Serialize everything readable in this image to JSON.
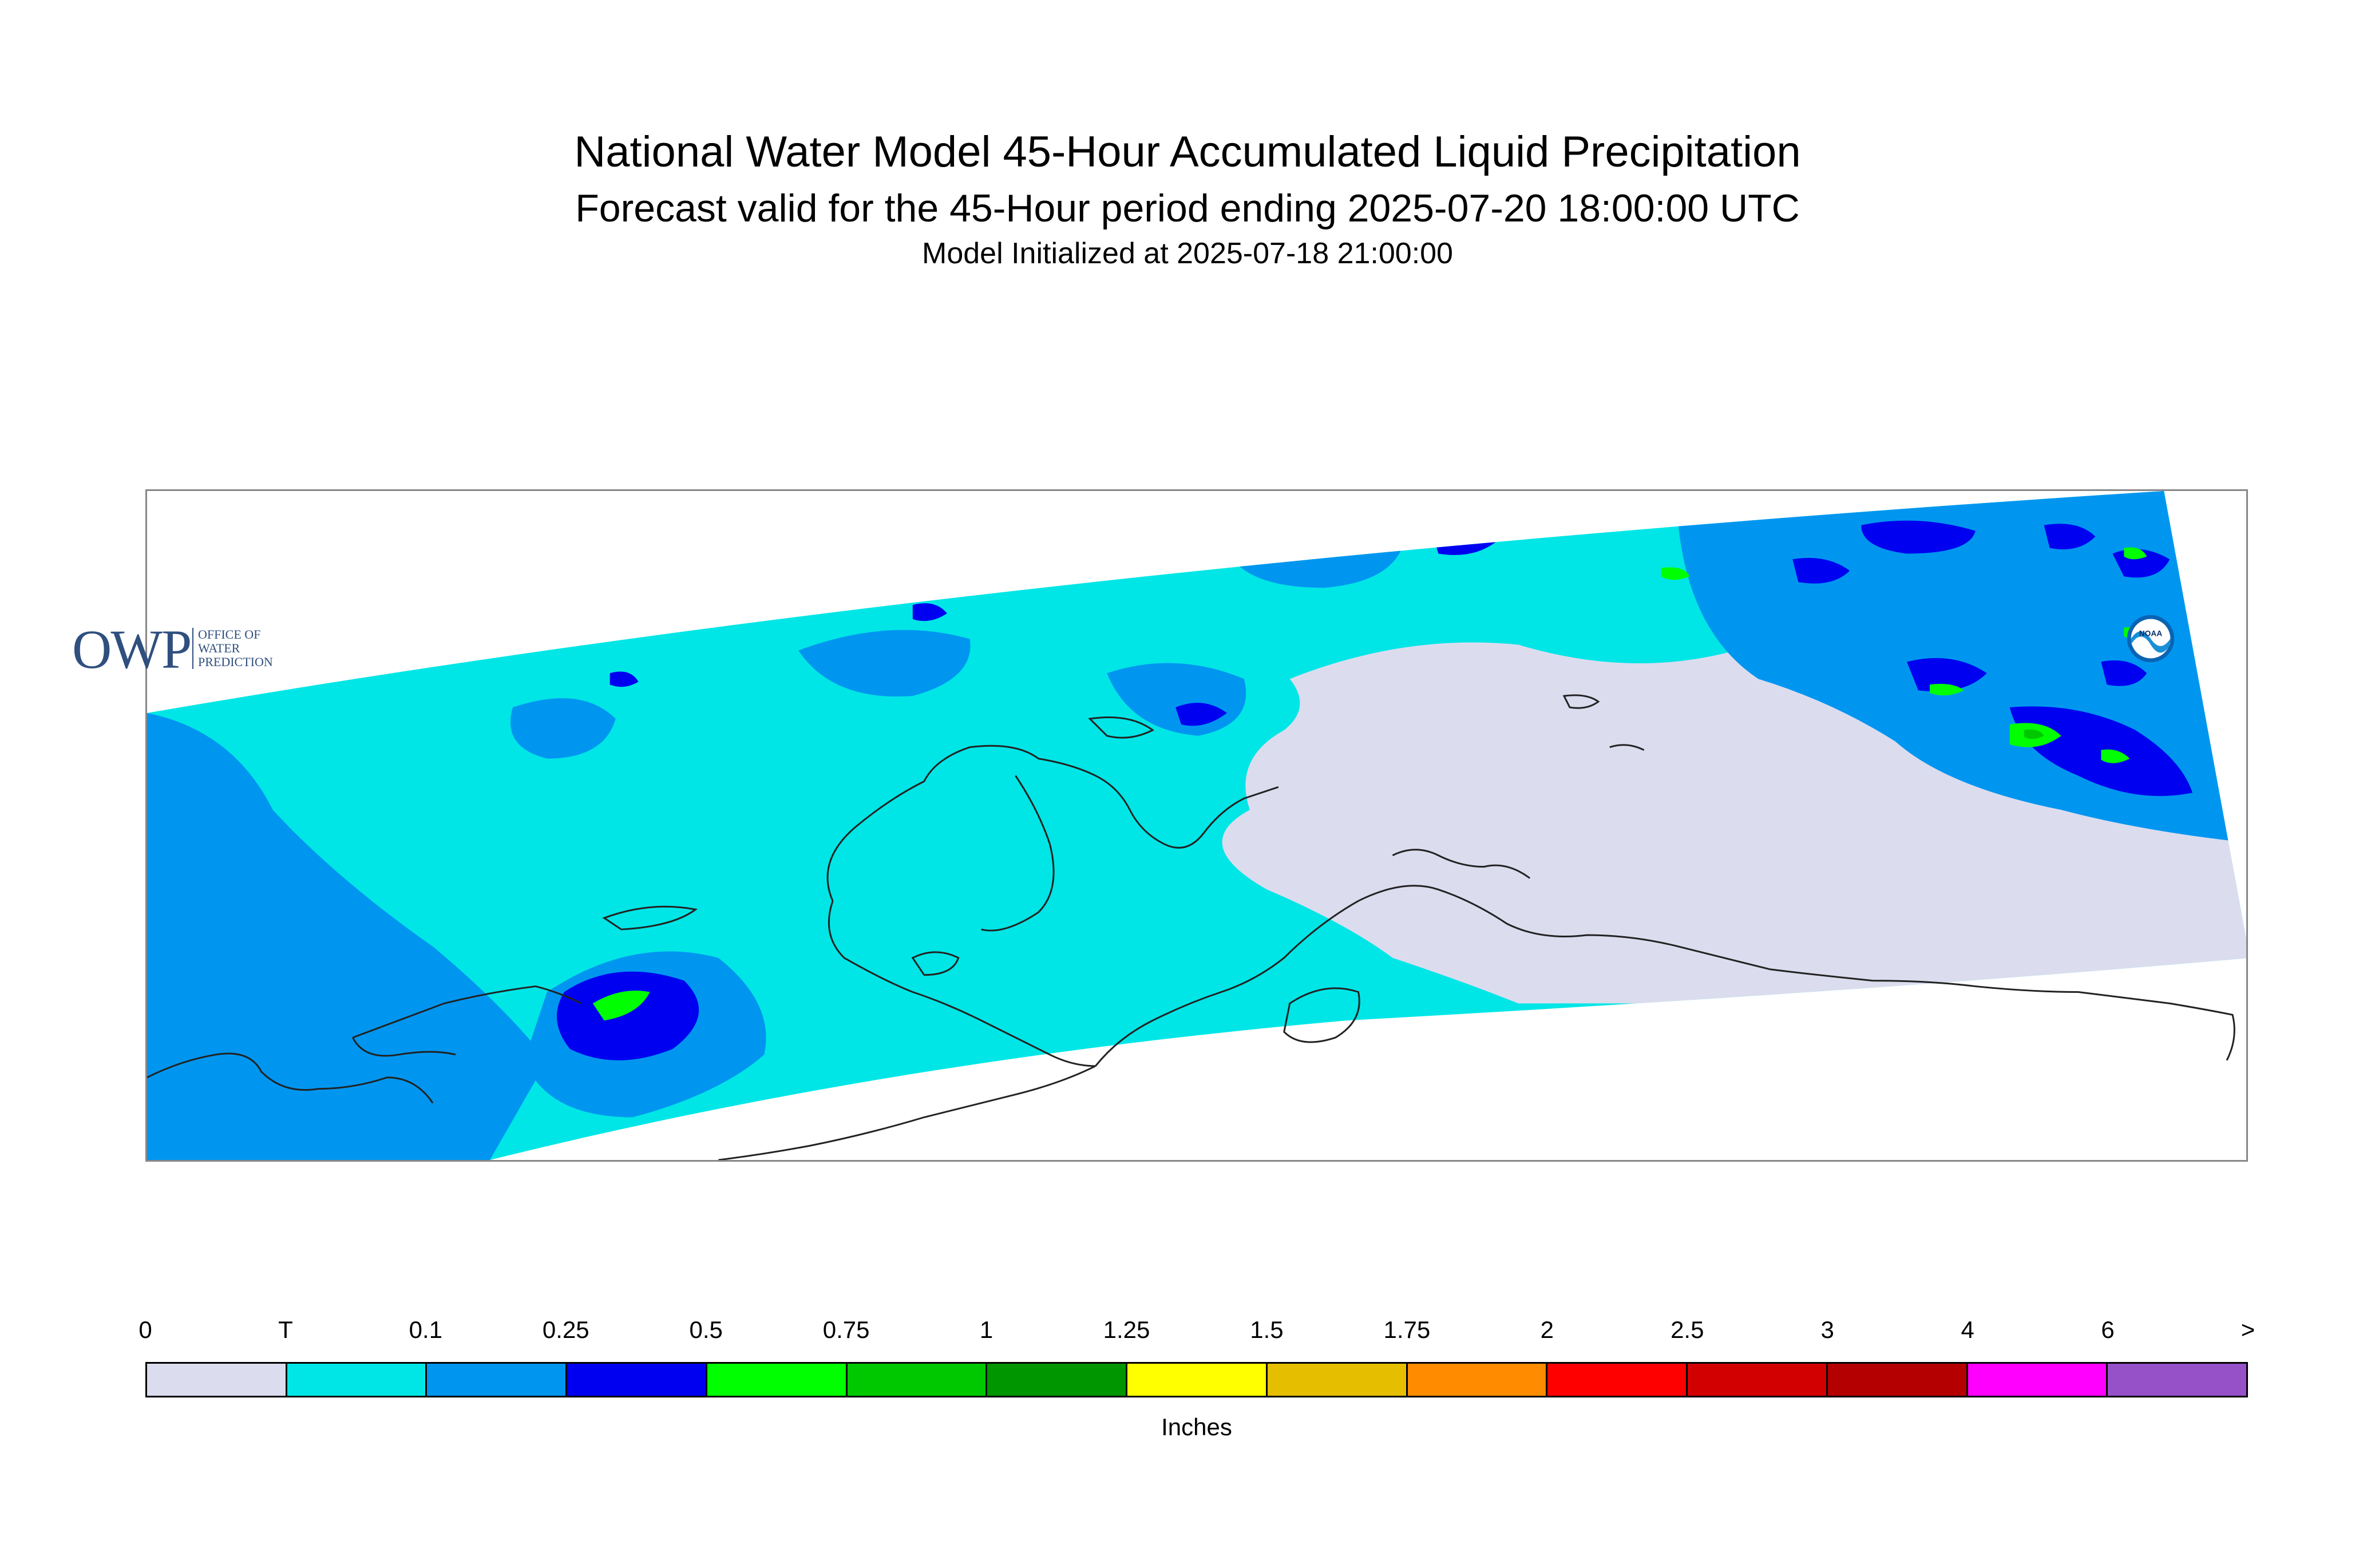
{
  "title": "National Water Model 45-Hour Accumulated Liquid Precipitation",
  "subtitle": "Forecast valid for the 45-Hour period ending 2025-07-20 18:00:00 UTC",
  "init_line": "Model Initialized at 2025-07-18 21:00:00",
  "logos": {
    "owp_letters": "OWP",
    "owp_line1": "OFFICE OF",
    "owp_line2": "WATER",
    "owp_line3": "PREDICTION",
    "noaa": "NOAA"
  },
  "legend": {
    "tick_labels": [
      "0",
      "T",
      "0.1",
      "0.25",
      "0.5",
      "0.75",
      "1",
      "1.25",
      "1.5",
      "1.75",
      "2",
      "2.5",
      "3",
      "4",
      "6",
      ">"
    ],
    "colors": [
      "#dcdcef",
      "#00e6e6",
      "#0096f0",
      "#0000f0",
      "#00ff00",
      "#00c800",
      "#009600",
      "#ffff00",
      "#e6be00",
      "#ff8c00",
      "#ff0000",
      "#d20000",
      "#b40000",
      "#ff00ff",
      "#9650c8"
    ],
    "units": "Inches"
  },
  "map_colors": {
    "zero": "#dcdcef",
    "trace": "#00e6e6",
    "p01": "#0096f0",
    "p025": "#0000f0",
    "p05": "#00ff00",
    "p075": "#00c800",
    "coast": "#222222"
  }
}
